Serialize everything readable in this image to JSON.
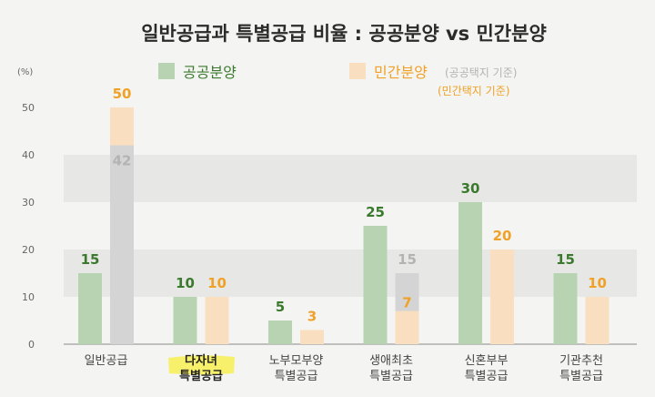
{
  "colors": {
    "public_bar": "#b7d3b2",
    "public_label": "#3b7a2e",
    "private_bar": "#f9dfc0",
    "private_label": "#f0a127",
    "inner_bar": "#d4d4d4",
    "inner_label": "#b3b3b3",
    "highlight": "#f7f06a",
    "band": "#e7e7e5"
  },
  "chart_data": {
    "type": "bar",
    "title": "일반공급과 특별공급 비율 : 공공분양 vs 민간분양",
    "ylabel": "(%)",
    "ylim": [
      0,
      50
    ],
    "yticks": [
      "0",
      "10",
      "20",
      "30",
      "40",
      "50"
    ],
    "grid": false,
    "legend_position": "top",
    "categories": [
      [
        "일반공급"
      ],
      [
        "다자녀",
        "특별공급"
      ],
      [
        "노부모부양",
        "특별공급"
      ],
      [
        "생애최초",
        "특별공급"
      ],
      [
        "신혼부부",
        "특별공급"
      ],
      [
        "기관추천",
        "특별공급"
      ]
    ],
    "highlighted_category": 1,
    "series": [
      {
        "name": "공공분양",
        "values": [
          15,
          10,
          5,
          25,
          30,
          15
        ],
        "labels": [
          "15",
          "10",
          "5",
          "25",
          "30",
          "15"
        ]
      },
      {
        "name": "민간분양",
        "name_note": "(공공택지 기준)",
        "values": [
          50,
          10,
          3,
          15,
          20,
          10
        ],
        "labels": [
          "50",
          "10",
          "3",
          "",
          "20",
          "10"
        ]
      },
      {
        "name": "민간분양",
        "name_note": "(민간택지 기준)",
        "values": [
          42,
          null,
          null,
          15,
          null,
          null
        ],
        "labels": [
          "42",
          "",
          "",
          "15",
          "",
          ""
        ]
      }
    ],
    "annotations": [
      {
        "category": 3,
        "value": 7,
        "text": "7"
      }
    ]
  }
}
